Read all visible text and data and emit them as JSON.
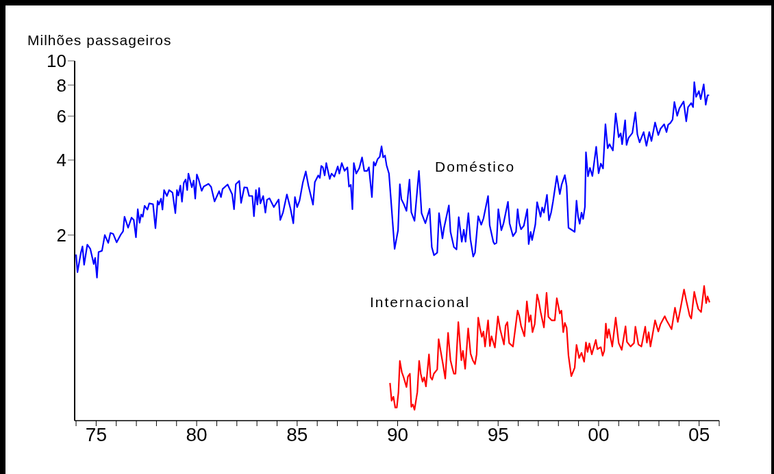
{
  "chart_data": {
    "type": "line",
    "ylabel": "Milhões passageiros",
    "log": "y",
    "marker": "none",
    "line_style": "solid",
    "xlim": [
      1973.93,
      2006
    ],
    "xticks": [
      {
        "value": 1974,
        "label": null
      },
      {
        "value": 1975,
        "label": "75"
      },
      {
        "value": 1976,
        "label": null
      },
      {
        "value": 1977,
        "label": null
      },
      {
        "value": 1978,
        "label": null
      },
      {
        "value": 1979,
        "label": null
      },
      {
        "value": 1980,
        "label": "80"
      },
      {
        "value": 1981,
        "label": null
      },
      {
        "value": 1982,
        "label": null
      },
      {
        "value": 1983,
        "label": null
      },
      {
        "value": 1984,
        "label": null
      },
      {
        "value": 1985,
        "label": "85"
      },
      {
        "value": 1986,
        "label": null
      },
      {
        "value": 1987,
        "label": null
      },
      {
        "value": 1988,
        "label": null
      },
      {
        "value": 1989,
        "label": null
      },
      {
        "value": 1990,
        "label": "90"
      },
      {
        "value": 1991,
        "label": null
      },
      {
        "value": 1992,
        "label": null
      },
      {
        "value": 1993,
        "label": null
      },
      {
        "value": 1994,
        "label": null
      },
      {
        "value": 1995,
        "label": "95"
      },
      {
        "value": 1996,
        "label": null
      },
      {
        "value": 1997,
        "label": null
      },
      {
        "value": 1998,
        "label": null
      },
      {
        "value": 1999,
        "label": null
      },
      {
        "value": 2000,
        "label": "00"
      },
      {
        "value": 2001,
        "label": null
      },
      {
        "value": 2002,
        "label": null
      },
      {
        "value": 2003,
        "label": null
      },
      {
        "value": 2004,
        "label": null
      },
      {
        "value": 2005,
        "label": "05"
      },
      {
        "value": 2006,
        "label": null
      }
    ],
    "ylim": [
      0.36,
      10
    ],
    "yticks": [
      2,
      4,
      6,
      8,
      10
    ],
    "series": [
      {
        "name": "Doméstico",
        "color": "#0000ff",
        "x": [
          1974.0,
          1974.07,
          1974.24,
          1974.32,
          1974.4,
          1974.56,
          1974.71,
          1974.88,
          1974.95,
          1975.04,
          1975.12,
          1975.29,
          1975.43,
          1975.6,
          1975.71,
          1975.85,
          1976.02,
          1976.21,
          1976.34,
          1976.41,
          1976.59,
          1976.76,
          1976.87,
          1976.98,
          1977.07,
          1977.16,
          1977.24,
          1977.32,
          1977.41,
          1977.55,
          1977.64,
          1977.83,
          1977.95,
          1978.06,
          1978.12,
          1978.23,
          1978.3,
          1978.38,
          1978.52,
          1978.63,
          1978.8,
          1978.94,
          1979.02,
          1979.09,
          1979.19,
          1979.27,
          1979.36,
          1979.45,
          1979.53,
          1979.59,
          1979.76,
          1979.85,
          1979.93,
          1980.01,
          1980.1,
          1980.25,
          1980.35,
          1980.59,
          1980.72,
          1980.89,
          1981.12,
          1981.21,
          1981.29,
          1981.54,
          1981.77,
          1981.86,
          1981.95,
          1982.12,
          1982.21,
          1982.37,
          1982.51,
          1982.61,
          1982.77,
          1982.85,
          1982.95,
          1983.02,
          1983.11,
          1983.17,
          1983.31,
          1983.42,
          1983.5,
          1983.62,
          1983.84,
          1984.08,
          1984.16,
          1984.3,
          1984.49,
          1984.67,
          1984.81,
          1984.89,
          1985.0,
          1985.12,
          1985.28,
          1985.43,
          1985.56,
          1985.79,
          1985.88,
          1986.05,
          1986.13,
          1986.2,
          1986.28,
          1986.37,
          1986.45,
          1986.62,
          1986.71,
          1986.85,
          1987.02,
          1987.1,
          1987.22,
          1987.36,
          1987.5,
          1987.58,
          1987.67,
          1987.75,
          1987.82,
          1987.94,
          1988.09,
          1988.23,
          1988.34,
          1988.49,
          1988.57,
          1988.72,
          1988.81,
          1988.89,
          1989.0,
          1989.11,
          1989.2,
          1989.28,
          1989.37,
          1989.45,
          1989.57,
          1989.68,
          1989.85,
          1990.02,
          1990.11,
          1990.19,
          1990.3,
          1990.44,
          1990.59,
          1990.68,
          1990.84,
          1991.06,
          1991.19,
          1991.38,
          1991.59,
          1991.7,
          1991.81,
          1991.97,
          1992.06,
          1992.23,
          1992.31,
          1992.55,
          1992.63,
          1992.8,
          1992.93,
          1993.04,
          1993.19,
          1993.29,
          1993.38,
          1993.52,
          1993.62,
          1993.76,
          1993.85,
          1994.01,
          1994.16,
          1994.27,
          1994.5,
          1994.58,
          1994.76,
          1994.82,
          1994.92,
          1995.01,
          1995.16,
          1995.27,
          1995.49,
          1995.57,
          1995.74,
          1995.89,
          1995.97,
          1996.05,
          1996.14,
          1996.28,
          1996.45,
          1996.52,
          1996.62,
          1996.69,
          1996.85,
          1996.94,
          1997.11,
          1997.19,
          1997.28,
          1997.43,
          1997.53,
          1997.64,
          1997.73,
          1997.92,
          1998.07,
          1998.16,
          1998.32,
          1998.41,
          1998.5,
          1998.81,
          1998.9,
          1998.98,
          1999.06,
          1999.15,
          1999.23,
          1999.32,
          1999.37,
          1999.47,
          1999.57,
          1999.69,
          1999.88,
          2000.0,
          2000.11,
          2000.22,
          2000.34,
          2000.45,
          2000.54,
          2000.71,
          2000.85,
          2001.0,
          2001.1,
          2001.17,
          2001.32,
          2001.39,
          2001.49,
          2001.68,
          2001.83,
          2001.93,
          2002.04,
          2002.24,
          2002.38,
          2002.52,
          2002.63,
          2002.81,
          2002.97,
          2003.08,
          2003.26,
          2003.38,
          2003.46,
          2003.57,
          2003.68,
          2003.77,
          2003.91,
          2004.02,
          2004.23,
          2004.36,
          2004.45,
          2004.61,
          2004.7,
          2004.76,
          2004.85,
          2004.99,
          2005.08,
          2005.23,
          2005.33,
          2005.42,
          2005.5
        ],
        "values": [
          1.67,
          1.42,
          1.7,
          1.8,
          1.52,
          1.83,
          1.76,
          1.53,
          1.62,
          1.35,
          1.71,
          1.73,
          2.0,
          1.86,
          2.04,
          2.02,
          1.87,
          2.0,
          2.07,
          2.37,
          2.14,
          2.35,
          2.3,
          1.96,
          2.54,
          2.24,
          2.42,
          2.37,
          2.62,
          2.53,
          2.68,
          2.66,
          2.13,
          2.74,
          2.65,
          2.8,
          2.53,
          3.03,
          2.87,
          3.03,
          2.96,
          2.45,
          3.03,
          2.88,
          3.16,
          2.72,
          3.24,
          3.34,
          3.03,
          3.53,
          3.11,
          3.31,
          2.8,
          3.5,
          3.34,
          3.01,
          3.13,
          3.21,
          3.12,
          2.73,
          3.0,
          2.84,
          3.06,
          3.19,
          2.91,
          2.54,
          3.2,
          3.3,
          2.69,
          3.11,
          3.1,
          2.87,
          2.87,
          2.38,
          3.03,
          2.65,
          3.09,
          2.68,
          2.87,
          2.46,
          2.77,
          2.81,
          2.59,
          2.78,
          2.3,
          2.47,
          2.91,
          2.55,
          2.23,
          2.84,
          2.59,
          2.75,
          3.24,
          3.6,
          3.16,
          2.65,
          3.26,
          3.47,
          3.39,
          3.79,
          3.74,
          3.47,
          3.89,
          3.36,
          3.53,
          3.43,
          3.77,
          3.53,
          3.89,
          3.62,
          3.74,
          3.13,
          3.18,
          2.54,
          3.89,
          3.53,
          3.71,
          4.1,
          3.62,
          3.62,
          3.74,
          2.84,
          3.93,
          3.8,
          4.03,
          4.12,
          4.54,
          4.1,
          4.17,
          3.81,
          3.53,
          2.69,
          1.76,
          2.09,
          3.2,
          2.78,
          2.67,
          2.5,
          3.34,
          2.47,
          2.28,
          3.62,
          2.45,
          2.23,
          2.55,
          1.79,
          1.66,
          1.7,
          2.45,
          1.94,
          2.14,
          2.63,
          2.06,
          1.79,
          1.75,
          2.36,
          1.88,
          2.1,
          1.88,
          2.45,
          1.93,
          1.64,
          1.7,
          2.38,
          2.2,
          2.33,
          2.87,
          2.19,
          1.88,
          1.84,
          1.86,
          2.54,
          2.09,
          2.23,
          2.72,
          2.23,
          1.98,
          2.06,
          2.54,
          2.24,
          2.11,
          2.18,
          2.54,
          1.84,
          2.06,
          1.91,
          2.2,
          2.71,
          2.37,
          2.58,
          2.46,
          2.9,
          2.29,
          2.47,
          2.72,
          3.45,
          2.92,
          3.19,
          3.48,
          3.14,
          2.14,
          2.06,
          2.75,
          2.37,
          2.22,
          2.46,
          2.32,
          2.6,
          4.3,
          3.44,
          3.72,
          3.45,
          4.52,
          3.54,
          3.87,
          3.7,
          5.57,
          4.46,
          4.63,
          4.37,
          6.15,
          4.94,
          5.12,
          4.63,
          5.78,
          4.6,
          4.91,
          5.14,
          6.21,
          5.06,
          4.71,
          5.18,
          4.56,
          5.18,
          4.77,
          5.66,
          5.04,
          5.34,
          5.57,
          5.18,
          5.54,
          5.63,
          5.81,
          6.84,
          6.02,
          6.45,
          6.87,
          5.72,
          6.52,
          6.77,
          6.52,
          8.22,
          7.17,
          7.56,
          7.02,
          8.05,
          6.67,
          7.28,
          7.28
        ]
      },
      {
        "name": "Internacional",
        "color": "#ff0000",
        "x": [
          1989.62,
          1989.7,
          1989.79,
          1989.88,
          1989.96,
          1990.04,
          1990.11,
          1990.21,
          1990.3,
          1990.44,
          1990.51,
          1990.61,
          1990.68,
          1990.76,
          1990.84,
          1990.98,
          1991.07,
          1991.15,
          1991.24,
          1991.32,
          1991.41,
          1991.56,
          1991.64,
          1991.72,
          1991.8,
          1991.97,
          1992.04,
          1992.15,
          1992.27,
          1992.37,
          1992.51,
          1992.63,
          1992.72,
          1992.8,
          1992.88,
          1993.02,
          1993.17,
          1993.25,
          1993.36,
          1993.51,
          1993.63,
          1993.74,
          1993.85,
          1993.93,
          1994.01,
          1994.1,
          1994.19,
          1994.27,
          1994.35,
          1994.5,
          1994.59,
          1994.67,
          1994.84,
          1994.99,
          1995.1,
          1995.29,
          1995.37,
          1995.46,
          1995.55,
          1995.74,
          1995.97,
          1996.05,
          1996.14,
          1996.31,
          1996.43,
          1996.54,
          1996.62,
          1996.71,
          1996.82,
          1996.94,
          1997.02,
          1997.12,
          1997.28,
          1997.41,
          1997.5,
          1997.67,
          1997.82,
          1997.92,
          1998.07,
          1998.15,
          1998.24,
          1998.32,
          1998.41,
          1998.5,
          1998.64,
          1998.81,
          1998.9,
          1999.03,
          1999.15,
          1999.28,
          1999.37,
          1999.45,
          1999.54,
          1999.66,
          1999.86,
          1999.94,
          2000.11,
          2000.2,
          2000.28,
          2000.36,
          2000.43,
          2000.51,
          2000.68,
          2000.85,
          2001.0,
          2001.15,
          2001.34,
          2001.41,
          2001.59,
          2001.76,
          2001.83,
          2001.98,
          2002.13,
          2002.32,
          2002.4,
          2002.49,
          2002.58,
          2002.81,
          2002.97,
          2003.08,
          2003.29,
          2003.38,
          2003.63,
          2003.8,
          2003.94,
          2004.04,
          2004.25,
          2004.36,
          2004.53,
          2004.61,
          2004.76,
          2004.87,
          2004.96,
          2005.1,
          2005.25,
          2005.35,
          2005.42,
          2005.52
        ],
        "values": [
          0.51,
          0.433,
          0.449,
          0.406,
          0.406,
          0.467,
          0.625,
          0.563,
          0.537,
          0.491,
          0.541,
          0.555,
          0.409,
          0.418,
          0.398,
          0.469,
          0.625,
          0.555,
          0.516,
          0.537,
          0.494,
          0.664,
          0.537,
          0.526,
          0.555,
          0.578,
          0.764,
          0.679,
          0.597,
          0.531,
          0.81,
          0.629,
          0.587,
          0.555,
          0.555,
          0.895,
          0.629,
          0.686,
          0.581,
          0.845,
          0.668,
          0.629,
          0.607,
          0.664,
          0.933,
          0.845,
          0.781,
          0.82,
          0.714,
          0.91,
          0.717,
          0.785,
          0.707,
          0.943,
          0.838,
          0.728,
          0.865,
          0.895,
          0.737,
          0.714,
          0.996,
          0.95,
          0.865,
          0.785,
          1.084,
          0.897,
          0.953,
          0.815,
          0.878,
          1.155,
          1.089,
          0.979,
          0.852,
          1.173,
          0.94,
          0.909,
          0.909,
          1.116,
          0.969,
          0.995,
          0.815,
          0.888,
          0.85,
          0.658,
          0.543,
          0.587,
          0.725,
          0.642,
          0.674,
          0.62,
          0.742,
          0.679,
          0.735,
          0.664,
          0.759,
          0.697,
          0.71,
          0.656,
          0.686,
          0.883,
          0.774,
          0.838,
          0.714,
          0.933,
          0.737,
          0.692,
          0.861,
          0.745,
          0.714,
          0.737,
          0.858,
          0.728,
          0.714,
          0.858,
          0.74,
          0.815,
          0.714,
          0.91,
          0.82,
          0.878,
          0.945,
          0.91,
          0.838,
          1.022,
          0.896,
          0.981,
          1.209,
          1.093,
          0.949,
          0.925,
          1.184,
          1.077,
          1.011,
          0.982,
          1.249,
          1.066,
          1.134,
          1.074
        ]
      }
    ]
  }
}
